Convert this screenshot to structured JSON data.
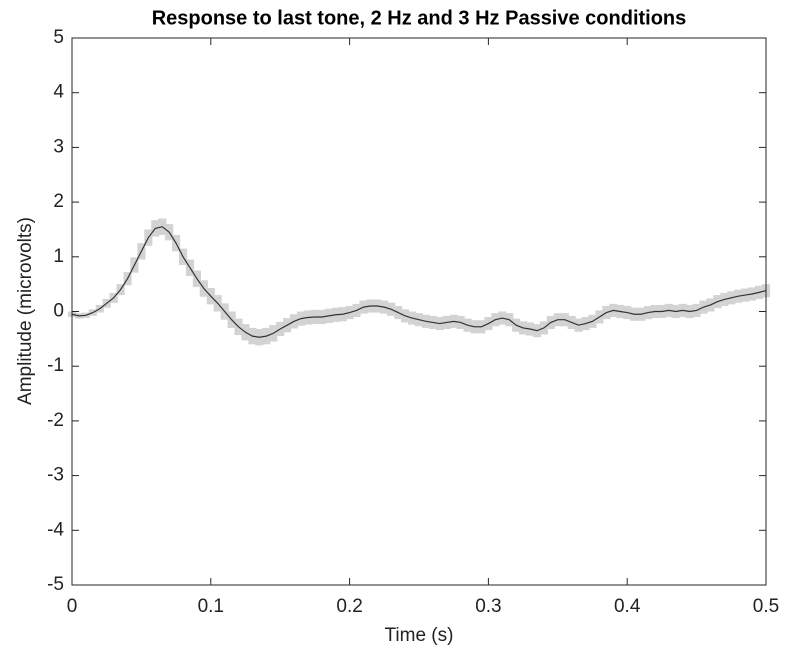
{
  "chart_data": {
    "type": "line",
    "title": "Response to last tone, 2 Hz and 3 Hz Passive conditions",
    "xlabel": "Time (s)",
    "ylabel": "Amplitude (microvolts)",
    "x": [
      0,
      0.005,
      0.01,
      0.015,
      0.02,
      0.025,
      0.03,
      0.035,
      0.04,
      0.045,
      0.05,
      0.055,
      0.06,
      0.065,
      0.07,
      0.075,
      0.08,
      0.085,
      0.09,
      0.095,
      0.1,
      0.105,
      0.11,
      0.115,
      0.12,
      0.125,
      0.13,
      0.135,
      0.14,
      0.145,
      0.15,
      0.155,
      0.16,
      0.165,
      0.17,
      0.175,
      0.18,
      0.185,
      0.19,
      0.195,
      0.2,
      0.205,
      0.21,
      0.215,
      0.22,
      0.225,
      0.23,
      0.235,
      0.24,
      0.245,
      0.25,
      0.255,
      0.26,
      0.265,
      0.27,
      0.275,
      0.28,
      0.285,
      0.29,
      0.295,
      0.3,
      0.305,
      0.31,
      0.315,
      0.32,
      0.325,
      0.33,
      0.335,
      0.34,
      0.345,
      0.35,
      0.355,
      0.36,
      0.365,
      0.37,
      0.375,
      0.38,
      0.385,
      0.39,
      0.395,
      0.4,
      0.405,
      0.41,
      0.415,
      0.42,
      0.425,
      0.43,
      0.435,
      0.44,
      0.445,
      0.45,
      0.455,
      0.46,
      0.465,
      0.47,
      0.475,
      0.48,
      0.485,
      0.49,
      0.495,
      0.5
    ],
    "series": [
      {
        "color": "#333333",
        "band_color": "#d3d3d3",
        "values": [
          -0.05,
          -0.08,
          -0.07,
          -0.02,
          0.05,
          0.15,
          0.25,
          0.4,
          0.6,
          0.85,
          1.1,
          1.35,
          1.52,
          1.55,
          1.45,
          1.25,
          1.0,
          0.8,
          0.6,
          0.42,
          0.28,
          0.15,
          0.0,
          -0.15,
          -0.28,
          -0.38,
          -0.45,
          -0.47,
          -0.45,
          -0.4,
          -0.32,
          -0.25,
          -0.18,
          -0.13,
          -0.11,
          -0.1,
          -0.1,
          -0.08,
          -0.06,
          -0.05,
          -0.02,
          0.02,
          0.08,
          0.1,
          0.1,
          0.08,
          0.04,
          -0.02,
          -0.08,
          -0.12,
          -0.15,
          -0.18,
          -0.2,
          -0.22,
          -0.2,
          -0.18,
          -0.2,
          -0.25,
          -0.28,
          -0.28,
          -0.22,
          -0.15,
          -0.12,
          -0.15,
          -0.25,
          -0.3,
          -0.32,
          -0.35,
          -0.3,
          -0.2,
          -0.15,
          -0.15,
          -0.2,
          -0.25,
          -0.22,
          -0.18,
          -0.1,
          -0.02,
          0.02,
          0.0,
          -0.02,
          -0.05,
          -0.05,
          -0.02,
          0.0,
          0.0,
          0.02,
          0.0,
          0.02,
          0.0,
          0.02,
          0.08,
          0.12,
          0.18,
          0.22,
          0.25,
          0.28,
          0.3,
          0.32,
          0.35,
          0.38
        ],
        "error": [
          0.05,
          0.05,
          0.05,
          0.06,
          0.07,
          0.08,
          0.09,
          0.1,
          0.12,
          0.14,
          0.15,
          0.15,
          0.15,
          0.15,
          0.15,
          0.15,
          0.15,
          0.15,
          0.15,
          0.15,
          0.15,
          0.15,
          0.15,
          0.15,
          0.15,
          0.15,
          0.15,
          0.15,
          0.15,
          0.15,
          0.13,
          0.13,
          0.13,
          0.13,
          0.13,
          0.13,
          0.13,
          0.13,
          0.13,
          0.13,
          0.12,
          0.12,
          0.12,
          0.12,
          0.12,
          0.12,
          0.12,
          0.12,
          0.12,
          0.12,
          0.12,
          0.12,
          0.12,
          0.12,
          0.12,
          0.12,
          0.12,
          0.12,
          0.12,
          0.12,
          0.12,
          0.12,
          0.12,
          0.12,
          0.12,
          0.12,
          0.12,
          0.12,
          0.12,
          0.12,
          0.12,
          0.12,
          0.12,
          0.12,
          0.12,
          0.12,
          0.12,
          0.12,
          0.12,
          0.12,
          0.12,
          0.12,
          0.12,
          0.12,
          0.12,
          0.12,
          0.12,
          0.12,
          0.12,
          0.12,
          0.12,
          0.12,
          0.12,
          0.12,
          0.12,
          0.12,
          0.12,
          0.12,
          0.12,
          0.12,
          0.12
        ]
      }
    ],
    "xlim": [
      0,
      0.5
    ],
    "xticks": [
      0,
      0.1,
      0.2,
      0.3,
      0.4,
      0.5
    ],
    "ylim": [
      -5,
      5
    ],
    "yticks": [
      -5,
      -4,
      -3,
      -2,
      -1,
      0,
      1,
      2,
      3,
      4,
      5
    ],
    "grid": false
  }
}
